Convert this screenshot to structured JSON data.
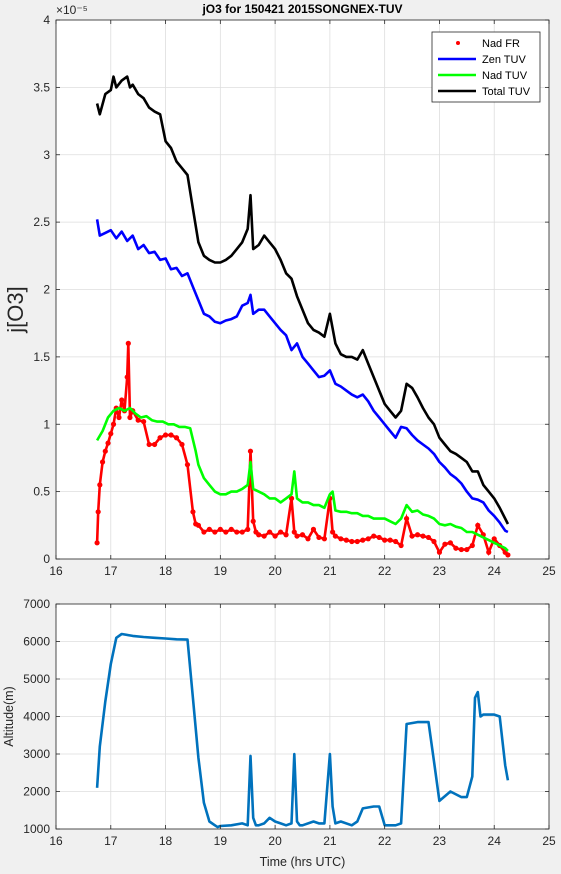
{
  "chart_data": [
    {
      "type": "line",
      "title": "jO3 for 150421 2015SONGNEX-TUV",
      "ylabel": "j[O3]",
      "xlabel": "",
      "y_exponent": "×10⁻⁵",
      "xlim": [
        16,
        25
      ],
      "ylim": [
        0,
        4
      ],
      "xticks": [
        16,
        17,
        18,
        19,
        20,
        21,
        22,
        23,
        24,
        25
      ],
      "yticks": [
        0,
        0.5,
        1,
        1.5,
        2,
        2.5,
        3,
        3.5,
        4
      ],
      "grid": true,
      "legend_position": "top-right",
      "series": [
        {
          "name": "Nad FR",
          "style": "points",
          "color": "#ff0000",
          "x": [
            16.75,
            16.77,
            16.8,
            16.85,
            16.9,
            16.95,
            17.0,
            17.05,
            17.1,
            17.15,
            17.2,
            17.25,
            17.3,
            17.32,
            17.35,
            17.4,
            17.5,
            17.6,
            17.7,
            17.8,
            17.9,
            18.0,
            18.1,
            18.2,
            18.3,
            18.4,
            18.5,
            18.55,
            18.6,
            18.7,
            18.8,
            18.9,
            19.0,
            19.1,
            19.2,
            19.3,
            19.4,
            19.5,
            19.55,
            19.6,
            19.65,
            19.7,
            19.8,
            19.9,
            20.0,
            20.1,
            20.2,
            20.3,
            20.35,
            20.4,
            20.5,
            20.6,
            20.7,
            20.8,
            20.9,
            21.0,
            21.05,
            21.1,
            21.2,
            21.3,
            21.4,
            21.5,
            21.6,
            21.7,
            21.8,
            21.9,
            22.0,
            22.1,
            22.2,
            22.3,
            22.4,
            22.5,
            22.6,
            22.7,
            22.8,
            22.9,
            23.0,
            23.1,
            23.2,
            23.3,
            23.4,
            23.5,
            23.6,
            23.7,
            23.8,
            23.9,
            24.0,
            24.1,
            24.2,
            24.25
          ],
          "y": [
            0.12,
            0.35,
            0.55,
            0.72,
            0.8,
            0.86,
            0.93,
            1.0,
            1.12,
            1.05,
            1.18,
            1.1,
            1.35,
            1.6,
            1.05,
            1.1,
            1.03,
            1.02,
            0.85,
            0.85,
            0.9,
            0.92,
            0.92,
            0.9,
            0.85,
            0.7,
            0.35,
            0.26,
            0.25,
            0.2,
            0.22,
            0.2,
            0.22,
            0.2,
            0.22,
            0.2,
            0.2,
            0.22,
            0.8,
            0.28,
            0.2,
            0.18,
            0.17,
            0.2,
            0.17,
            0.2,
            0.18,
            0.45,
            0.2,
            0.17,
            0.18,
            0.15,
            0.22,
            0.16,
            0.15,
            0.45,
            0.2,
            0.17,
            0.15,
            0.14,
            0.13,
            0.13,
            0.14,
            0.15,
            0.17,
            0.16,
            0.14,
            0.14,
            0.13,
            0.1,
            0.3,
            0.17,
            0.18,
            0.17,
            0.16,
            0.13,
            0.05,
            0.11,
            0.12,
            0.08,
            0.07,
            0.07,
            0.1,
            0.25,
            0.18,
            0.05,
            0.15,
            0.1,
            0.05,
            0.03
          ]
        },
        {
          "name": "Zen TUV",
          "style": "line",
          "color": "#0000ff",
          "x": [
            16.75,
            16.8,
            16.9,
            17.0,
            17.1,
            17.2,
            17.3,
            17.4,
            17.5,
            17.6,
            17.7,
            17.8,
            17.9,
            18.0,
            18.1,
            18.2,
            18.3,
            18.4,
            18.5,
            18.6,
            18.7,
            18.8,
            18.9,
            19.0,
            19.1,
            19.2,
            19.3,
            19.4,
            19.5,
            19.55,
            19.6,
            19.7,
            19.8,
            19.9,
            20.0,
            20.1,
            20.2,
            20.3,
            20.4,
            20.5,
            20.6,
            20.7,
            20.8,
            20.9,
            21.0,
            21.1,
            21.2,
            21.3,
            21.4,
            21.5,
            21.6,
            21.7,
            21.8,
            21.9,
            22.0,
            22.1,
            22.2,
            22.3,
            22.4,
            22.5,
            22.6,
            22.7,
            22.8,
            22.9,
            23.0,
            23.1,
            23.2,
            23.3,
            23.4,
            23.5,
            23.6,
            23.7,
            23.8,
            23.9,
            24.0,
            24.1,
            24.2,
            24.25
          ],
          "y": [
            2.52,
            2.4,
            2.42,
            2.44,
            2.38,
            2.43,
            2.36,
            2.4,
            2.3,
            2.33,
            2.27,
            2.28,
            2.22,
            2.23,
            2.15,
            2.16,
            2.1,
            2.12,
            2.02,
            1.92,
            1.82,
            1.8,
            1.76,
            1.75,
            1.77,
            1.78,
            1.8,
            1.88,
            1.9,
            1.96,
            1.82,
            1.85,
            1.85,
            1.8,
            1.75,
            1.7,
            1.66,
            1.55,
            1.6,
            1.5,
            1.45,
            1.4,
            1.35,
            1.36,
            1.4,
            1.3,
            1.28,
            1.25,
            1.22,
            1.2,
            1.22,
            1.17,
            1.1,
            1.05,
            1.0,
            0.95,
            0.9,
            0.98,
            0.97,
            0.92,
            0.88,
            0.85,
            0.82,
            0.78,
            0.72,
            0.68,
            0.63,
            0.6,
            0.56,
            0.5,
            0.45,
            0.44,
            0.42,
            0.36,
            0.32,
            0.27,
            0.21,
            0.2
          ]
        },
        {
          "name": "Nad TUV",
          "style": "line",
          "color": "#00ff00",
          "x": [
            16.75,
            16.85,
            16.95,
            17.05,
            17.15,
            17.25,
            17.35,
            17.45,
            17.55,
            17.65,
            17.75,
            17.85,
            17.95,
            18.05,
            18.15,
            18.25,
            18.35,
            18.45,
            18.55,
            18.6,
            18.7,
            18.8,
            18.9,
            19.0,
            19.1,
            19.2,
            19.3,
            19.4,
            19.5,
            19.55,
            19.6,
            19.7,
            19.8,
            19.9,
            20.0,
            20.1,
            20.2,
            20.3,
            20.35,
            20.4,
            20.5,
            20.6,
            20.7,
            20.8,
            20.9,
            21.0,
            21.05,
            21.1,
            21.2,
            21.3,
            21.4,
            21.5,
            21.6,
            21.7,
            21.8,
            21.9,
            22.0,
            22.1,
            22.2,
            22.3,
            22.4,
            22.5,
            22.6,
            22.7,
            22.8,
            22.9,
            23.0,
            23.1,
            23.2,
            23.3,
            23.4,
            23.5,
            23.6,
            23.7,
            23.8,
            23.9,
            24.0,
            24.1,
            24.2,
            24.25
          ],
          "y": [
            0.88,
            0.95,
            1.05,
            1.1,
            1.12,
            1.1,
            1.12,
            1.08,
            1.05,
            1.06,
            1.03,
            1.02,
            1.02,
            1.0,
            1.0,
            0.98,
            0.98,
            0.97,
            0.8,
            0.7,
            0.6,
            0.55,
            0.5,
            0.48,
            0.48,
            0.5,
            0.5,
            0.52,
            0.55,
            0.72,
            0.52,
            0.5,
            0.48,
            0.45,
            0.45,
            0.42,
            0.45,
            0.48,
            0.65,
            0.45,
            0.42,
            0.42,
            0.4,
            0.4,
            0.38,
            0.48,
            0.5,
            0.36,
            0.35,
            0.35,
            0.34,
            0.34,
            0.32,
            0.32,
            0.3,
            0.3,
            0.3,
            0.28,
            0.26,
            0.3,
            0.4,
            0.35,
            0.36,
            0.33,
            0.32,
            0.3,
            0.26,
            0.25,
            0.26,
            0.24,
            0.23,
            0.2,
            0.2,
            0.18,
            0.16,
            0.14,
            0.12,
            0.1,
            0.08,
            0.06
          ]
        },
        {
          "name": "Total TUV",
          "style": "line",
          "color": "#000000",
          "x": [
            16.75,
            16.8,
            16.9,
            17.0,
            17.05,
            17.1,
            17.2,
            17.3,
            17.35,
            17.4,
            17.5,
            17.6,
            17.7,
            17.8,
            17.9,
            18.0,
            18.1,
            18.2,
            18.3,
            18.4,
            18.5,
            18.6,
            18.7,
            18.8,
            18.9,
            19.0,
            19.1,
            19.2,
            19.3,
            19.4,
            19.5,
            19.55,
            19.6,
            19.7,
            19.8,
            19.9,
            20.0,
            20.1,
            20.2,
            20.3,
            20.4,
            20.5,
            20.6,
            20.7,
            20.8,
            20.9,
            21.0,
            21.1,
            21.2,
            21.3,
            21.4,
            21.5,
            21.6,
            21.7,
            21.8,
            21.9,
            22.0,
            22.1,
            22.2,
            22.3,
            22.4,
            22.5,
            22.6,
            22.7,
            22.8,
            22.9,
            23.0,
            23.1,
            23.2,
            23.3,
            23.4,
            23.5,
            23.6,
            23.7,
            23.8,
            23.9,
            24.0,
            24.1,
            24.2,
            24.25
          ],
          "y": [
            3.38,
            3.3,
            3.45,
            3.48,
            3.58,
            3.5,
            3.55,
            3.58,
            3.5,
            3.52,
            3.45,
            3.42,
            3.35,
            3.32,
            3.3,
            3.1,
            3.05,
            2.95,
            2.9,
            2.85,
            2.6,
            2.35,
            2.25,
            2.22,
            2.2,
            2.2,
            2.22,
            2.25,
            2.3,
            2.35,
            2.45,
            2.7,
            2.3,
            2.33,
            2.4,
            2.35,
            2.3,
            2.22,
            2.12,
            2.08,
            1.95,
            1.85,
            1.75,
            1.7,
            1.68,
            1.65,
            1.82,
            1.6,
            1.52,
            1.5,
            1.5,
            1.48,
            1.55,
            1.45,
            1.35,
            1.25,
            1.15,
            1.1,
            1.05,
            1.1,
            1.3,
            1.27,
            1.2,
            1.12,
            1.05,
            1.0,
            0.9,
            0.85,
            0.8,
            0.78,
            0.75,
            0.72,
            0.65,
            0.65,
            0.55,
            0.5,
            0.45,
            0.38,
            0.3,
            0.26
          ]
        }
      ]
    },
    {
      "type": "line",
      "title": "",
      "xlabel": "Time (hrs UTC)",
      "ylabel": "Altitude(m)",
      "xlim": [
        16,
        25
      ],
      "ylim": [
        1000,
        7000
      ],
      "xticks": [
        16,
        17,
        18,
        19,
        20,
        21,
        22,
        23,
        24,
        25
      ],
      "yticks": [
        1000,
        2000,
        3000,
        4000,
        5000,
        6000,
        7000
      ],
      "grid": true,
      "series": [
        {
          "name": "",
          "style": "line",
          "color": "#0072bd",
          "x": [
            16.75,
            16.8,
            16.9,
            17.0,
            17.1,
            17.2,
            17.4,
            17.6,
            17.8,
            18.0,
            18.2,
            18.4,
            18.5,
            18.6,
            18.7,
            18.8,
            18.9,
            18.95,
            19.0,
            19.2,
            19.4,
            19.5,
            19.55,
            19.6,
            19.65,
            19.7,
            19.8,
            19.9,
            20.0,
            20.1,
            20.2,
            20.3,
            20.35,
            20.4,
            20.45,
            20.5,
            20.7,
            20.8,
            20.9,
            21.0,
            21.05,
            21.1,
            21.2,
            21.4,
            21.5,
            21.6,
            21.8,
            21.9,
            22.0,
            22.2,
            22.3,
            22.4,
            22.6,
            22.8,
            22.9,
            23.0,
            23.2,
            23.4,
            23.5,
            23.6,
            23.65,
            23.7,
            23.75,
            23.8,
            24.0,
            24.1,
            24.2,
            24.25
          ],
          "y": [
            2100,
            3200,
            4400,
            5400,
            6100,
            6200,
            6150,
            6120,
            6100,
            6080,
            6060,
            6050,
            4500,
            2900,
            1700,
            1200,
            1100,
            1050,
            1080,
            1100,
            1150,
            1100,
            2950,
            1300,
            1100,
            1100,
            1150,
            1300,
            1200,
            1150,
            1100,
            1150,
            3000,
            1200,
            1100,
            1100,
            1200,
            1150,
            1150,
            3000,
            1600,
            1150,
            1200,
            1100,
            1200,
            1550,
            1600,
            1600,
            1100,
            1100,
            1150,
            3800,
            3850,
            3850,
            2800,
            1750,
            2000,
            1850,
            1850,
            2400,
            4500,
            4650,
            4000,
            4050,
            4050,
            4000,
            2700,
            2300
          ]
        }
      ]
    }
  ]
}
